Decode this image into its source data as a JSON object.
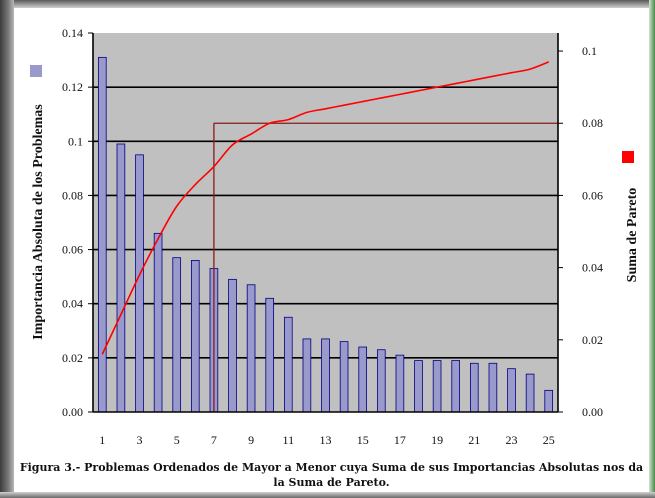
{
  "chart_data": {
    "type": "bar",
    "categories": [
      1,
      2,
      3,
      4,
      5,
      6,
      7,
      8,
      9,
      10,
      11,
      12,
      13,
      14,
      15,
      16,
      17,
      18,
      19,
      20,
      21,
      22,
      23,
      24,
      25
    ],
    "x_tick_labels": [
      "1",
      "3",
      "5",
      "7",
      "9",
      "11",
      "13",
      "15",
      "17",
      "19",
      "21",
      "23",
      "25"
    ],
    "series": [
      {
        "axis": "left",
        "kind": "bar",
        "values": [
          0.131,
          0.099,
          0.095,
          0.066,
          0.057,
          0.056,
          0.053,
          0.049,
          0.047,
          0.042,
          0.035,
          0.027,
          0.027,
          0.026,
          0.024,
          0.023,
          0.021,
          0.019,
          0.019,
          0.019,
          0.018,
          0.018,
          0.016,
          0.014,
          0.008
        ]
      },
      {
        "axis": "right",
        "kind": "line",
        "values": [
          0.016,
          0.027,
          0.038,
          0.048,
          0.057,
          0.063,
          0.068,
          0.074,
          0.077,
          0.08,
          0.081,
          0.083,
          0.084,
          0.085,
          0.086,
          0.087,
          0.088,
          0.089,
          0.09,
          0.091,
          0.092,
          0.093,
          0.094,
          0.095,
          0.097
        ]
      }
    ],
    "ylabel_left": "Importancia  Absoluta de los Problemas",
    "ylabel_right": "Suma de Pareto",
    "ylim_left": [
      0,
      0.14
    ],
    "yticks_left": [
      "0.00",
      "0.02",
      "0.04",
      "0.06",
      "0.08",
      "0.1",
      "0.12",
      "0.14"
    ],
    "ylim_right": [
      0,
      0.105
    ],
    "yticks_right": [
      "0.00",
      "0.02",
      "0.04",
      "0.06",
      "0.08",
      "0.1"
    ],
    "reference_lines": {
      "x": 7,
      "y_right": 0.08
    },
    "grid": true,
    "colors": {
      "bars": "#9999cc",
      "bar_edge": "#000080",
      "line": "#ff0000",
      "reference": "#8b1a1a",
      "plot_bg": "#c0c0c0",
      "left_marker": "#9999cc",
      "right_marker": "#ff0000"
    }
  },
  "caption": "Figura 3.- Problemas Ordenados de Mayor a Menor cuya Suma de sus Importancias Absolutas nos da la Suma de Pareto."
}
